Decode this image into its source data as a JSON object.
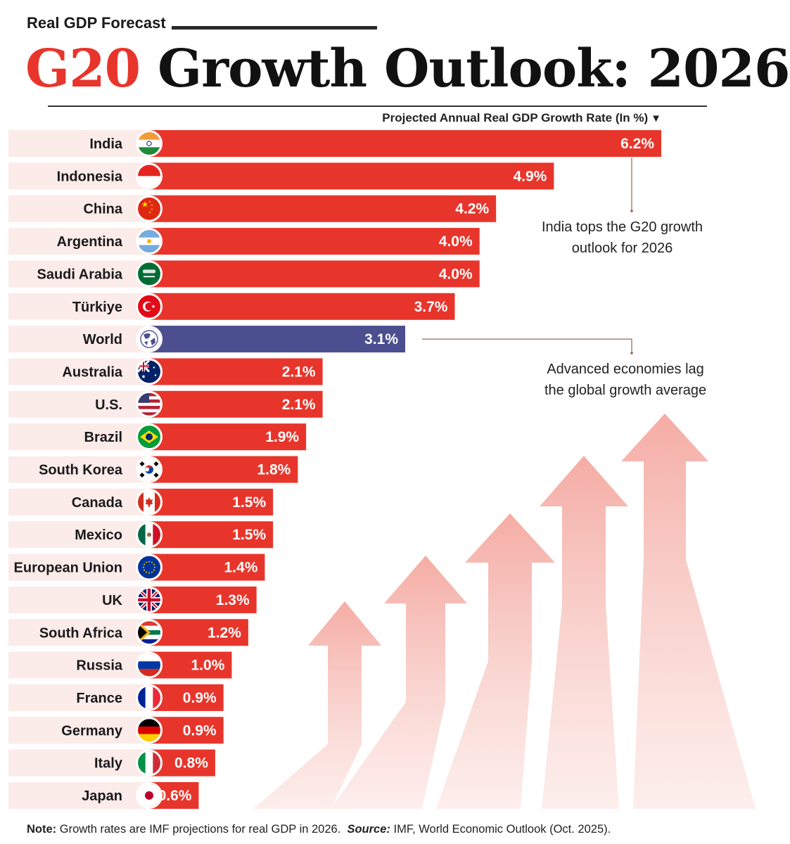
{
  "header": {
    "kicker": "Real GDP Forecast",
    "title_accent": "G20",
    "title_rest": " Growth Outlook: 2026",
    "axis_label": "Projected Annual Real GDP Growth Rate (In %)",
    "axis_marker": "▼"
  },
  "chart_data": {
    "type": "bar",
    "orientation": "horizontal",
    "categories": [
      "India",
      "Indonesia",
      "China",
      "Argentina",
      "Saudi Arabia",
      "Türkiye",
      "World",
      "Australia",
      "U.S.",
      "Brazil",
      "South Korea",
      "Canada",
      "Mexico",
      "European Union",
      "UK",
      "South Africa",
      "Russia",
      "France",
      "Germany",
      "Italy",
      "Japan"
    ],
    "values": [
      6.2,
      4.9,
      4.2,
      4.0,
      4.0,
      3.7,
      3.1,
      2.1,
      2.1,
      1.9,
      1.8,
      1.5,
      1.5,
      1.4,
      1.3,
      1.2,
      1.0,
      0.9,
      0.9,
      0.8,
      0.6
    ],
    "value_labels": [
      "6.2%",
      "4.9%",
      "4.2%",
      "4.0%",
      "4.0%",
      "3.7%",
      "3.1%",
      "2.1%",
      "2.1%",
      "1.9%",
      "1.8%",
      "1.5%",
      "1.5%",
      "1.4%",
      "1.3%",
      "1.2%",
      "1.0%",
      "0.9%",
      "0.9%",
      "0.8%",
      "0.6%"
    ],
    "highlight": "World",
    "colors": {
      "bar": "#e8352b",
      "highlight": "#4b4f8f",
      "row_band": "#fbe9e7"
    },
    "xlim": [
      0,
      6.2
    ],
    "ylabel": "Projected Annual Real GDP Growth Rate (In %)",
    "annotations": [
      {
        "lines": [
          "India tops the G20 growth",
          "outlook for 2026"
        ]
      },
      {
        "lines": [
          "Advanced economies lag",
          "the global growth average"
        ]
      }
    ]
  },
  "footer": {
    "note_label": "Note:",
    "note_text": " Growth rates are IMF projections for real GDP in 2026.",
    "source_label": "Source:",
    "source_text": " IMF, World Economic Outlook (Oct. 2025)."
  }
}
